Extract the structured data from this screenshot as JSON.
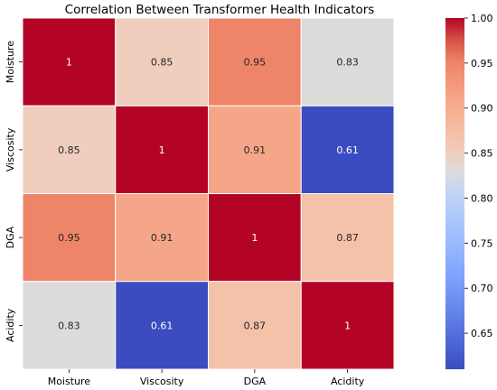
{
  "chart_data": {
    "type": "heatmap",
    "title": "Correlation Between Transformer Health Indicators",
    "x_labels": [
      "Moisture",
      "Viscosity",
      "DGA",
      "Acidity"
    ],
    "y_labels": [
      "Moisture",
      "Viscosity",
      "DGA",
      "Acidity"
    ],
    "values": [
      [
        1,
        0.85,
        0.95,
        0.83
      ],
      [
        0.85,
        1,
        0.91,
        0.61
      ],
      [
        0.95,
        0.91,
        1,
        0.87
      ],
      [
        0.83,
        0.61,
        0.87,
        1
      ]
    ],
    "annotations": [
      [
        "1",
        "0.85",
        "0.95",
        "0.83"
      ],
      [
        "0.85",
        "1",
        "0.91",
        "0.61"
      ],
      [
        "0.95",
        "0.91",
        "1",
        "0.87"
      ],
      [
        "0.83",
        "0.61",
        "0.87",
        "1"
      ]
    ],
    "colormap": "coolwarm",
    "vmin": 0.61,
    "vmax": 1.0,
    "colorbar_ticks": [
      "0.65",
      "0.70",
      "0.75",
      "0.80",
      "0.85",
      "0.90",
      "0.95",
      "1.00"
    ],
    "cmap_stops": [
      {
        "v": 0.0,
        "color": "#3b4cc0"
      },
      {
        "v": 0.125,
        "color": "#5977e3"
      },
      {
        "v": 0.25,
        "color": "#7b9ff9"
      },
      {
        "v": 0.375,
        "color": "#9ebeff"
      },
      {
        "v": 0.5,
        "color": "#c0d4f5"
      },
      {
        "v": 0.5625,
        "color": "#dddcdc"
      },
      {
        "v": 0.625,
        "color": "#f2cbb7"
      },
      {
        "v": 0.75,
        "color": "#f7ac8e"
      },
      {
        "v": 0.875,
        "color": "#ee8468"
      },
      {
        "v": 0.9375,
        "color": "#d65244"
      },
      {
        "v": 1.0,
        "color": "#b40426"
      }
    ]
  }
}
